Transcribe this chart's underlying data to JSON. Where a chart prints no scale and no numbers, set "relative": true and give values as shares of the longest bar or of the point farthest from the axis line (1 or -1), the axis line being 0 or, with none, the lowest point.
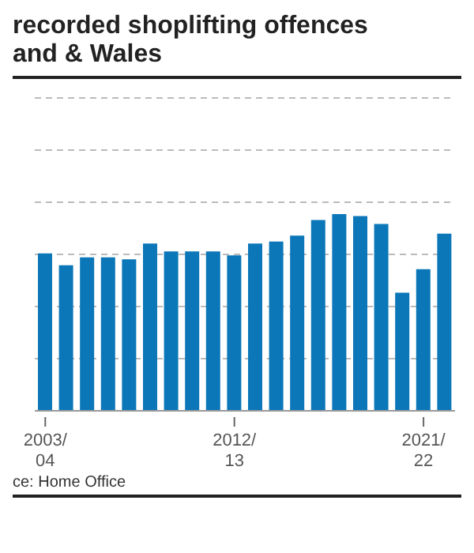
{
  "chart_data": {
    "type": "bar",
    "title": "recorded shoplifting offences\nand & Wales",
    "categories": [
      "2003/04",
      null,
      null,
      null,
      null,
      null,
      null,
      null,
      null,
      "2012/13",
      null,
      null,
      null,
      null,
      null,
      null,
      null,
      null,
      "2021/22",
      null
    ],
    "values": [
      0.8,
      0.74,
      0.78,
      0.78,
      0.77,
      0.85,
      0.81,
      0.81,
      0.81,
      0.79,
      0.85,
      0.86,
      0.89,
      0.97,
      1,
      0.99,
      0.95,
      0.6,
      0.72,
      0.9
    ],
    "relative": true,
    "color": "#0b77b8",
    "grid": "y",
    "annotations": [
      "ce: Home Office"
    ]
  }
}
